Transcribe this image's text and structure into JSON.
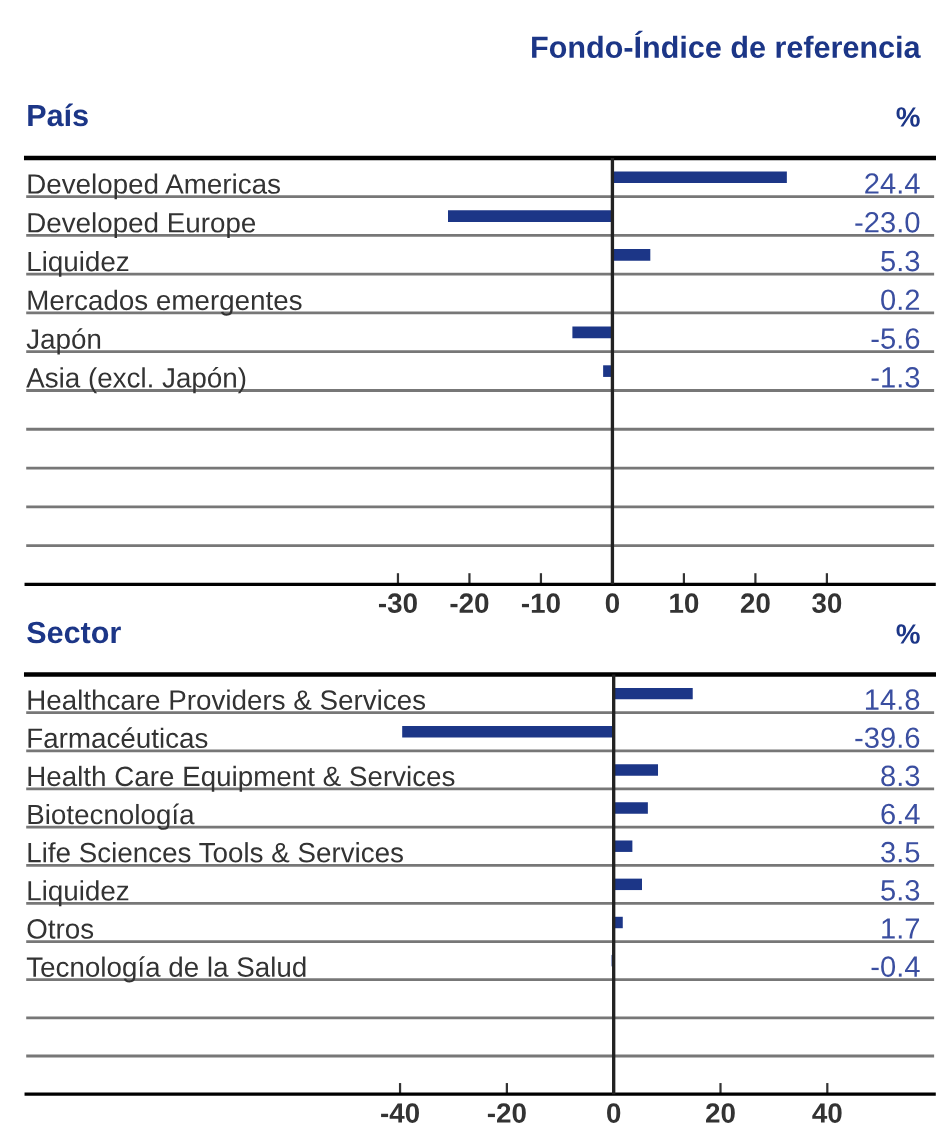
{
  "chart_data": [
    {
      "type": "bar",
      "orientation": "horizontal",
      "subtitle": "Fondo-Índice de referencia",
      "title": "País",
      "annotations": [
        "%"
      ],
      "categories": [
        "Developed Americas",
        "Developed Europe",
        "Liquidez",
        "Mercados emergentes",
        "Japón",
        "Asia (excl. Japón)",
        null,
        null,
        null,
        null,
        null
      ],
      "values": [
        24.4,
        -23.0,
        5.3,
        0.2,
        -5.6,
        -1.3,
        null,
        null,
        null,
        null,
        null
      ],
      "value_labels": [
        "24.4",
        "-23.0",
        "5.3",
        "0.2",
        "-5.6",
        "-1.3",
        null,
        null,
        null,
        null,
        null
      ],
      "color": "#1c3687",
      "xlim": [
        -82,
        45
      ],
      "xticks": [
        -30,
        -20,
        -10,
        0,
        10,
        20,
        30
      ],
      "grid": "y",
      "ref_lines": [
        {
          "axis": "x",
          "value": 0,
          "color": "#222222"
        }
      ]
    },
    {
      "type": "bar",
      "orientation": "horizontal",
      "title": "Sector",
      "annotations": [
        "%"
      ],
      "categories": [
        "Healthcare Providers & Services",
        "Farmacéuticas",
        "Health Care Equipment & Services",
        "Biotecnología",
        "Life Sciences Tools & Services",
        "Liquidez",
        "Otros",
        "Tecnología de la Salud",
        null,
        null,
        null
      ],
      "values": [
        14.8,
        -39.6,
        8.3,
        6.4,
        3.5,
        5.3,
        1.7,
        -0.4,
        null,
        null,
        null
      ],
      "value_labels": [
        "14.8",
        "-39.6",
        "8.3",
        "6.4",
        "3.5",
        "5.3",
        "1.7",
        "-0.4",
        null,
        null,
        null
      ],
      "color": "#1c3687",
      "xlim": [
        -110,
        60
      ],
      "xticks": [
        -40,
        -20,
        0,
        20,
        40
      ],
      "grid": "y",
      "ref_lines": [
        {
          "axis": "x",
          "value": 0,
          "color": "#222222"
        }
      ]
    }
  ]
}
